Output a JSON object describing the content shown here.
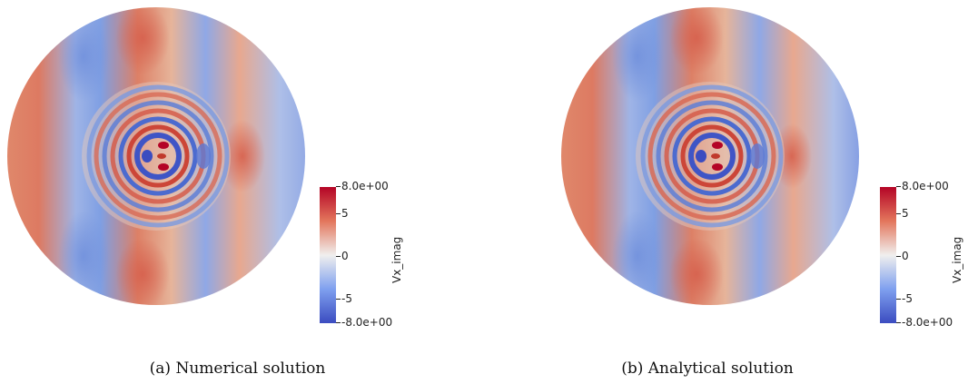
{
  "figures": [
    {
      "caption": "(a)  Numerical solution",
      "colorbar": {
        "title": "Vx_imag",
        "max_label": "8.0e+00",
        "min_label": "-8.0e+00",
        "ticks": [
          "5",
          "0",
          "-5"
        ]
      },
      "colors": {
        "high": "#b40426",
        "mid": "#f0efee",
        "low": "#3b4cc0"
      }
    },
    {
      "caption": "(b)  Analytical solution",
      "colorbar": {
        "title": "Vx_imag",
        "max_label": "8.0e+00",
        "min_label": "-8.0e+00",
        "ticks": [
          "5",
          "0",
          "-5"
        ]
      },
      "colors": {
        "high": "#b40426",
        "mid": "#f0efee",
        "low": "#3b4cc0"
      }
    }
  ]
}
